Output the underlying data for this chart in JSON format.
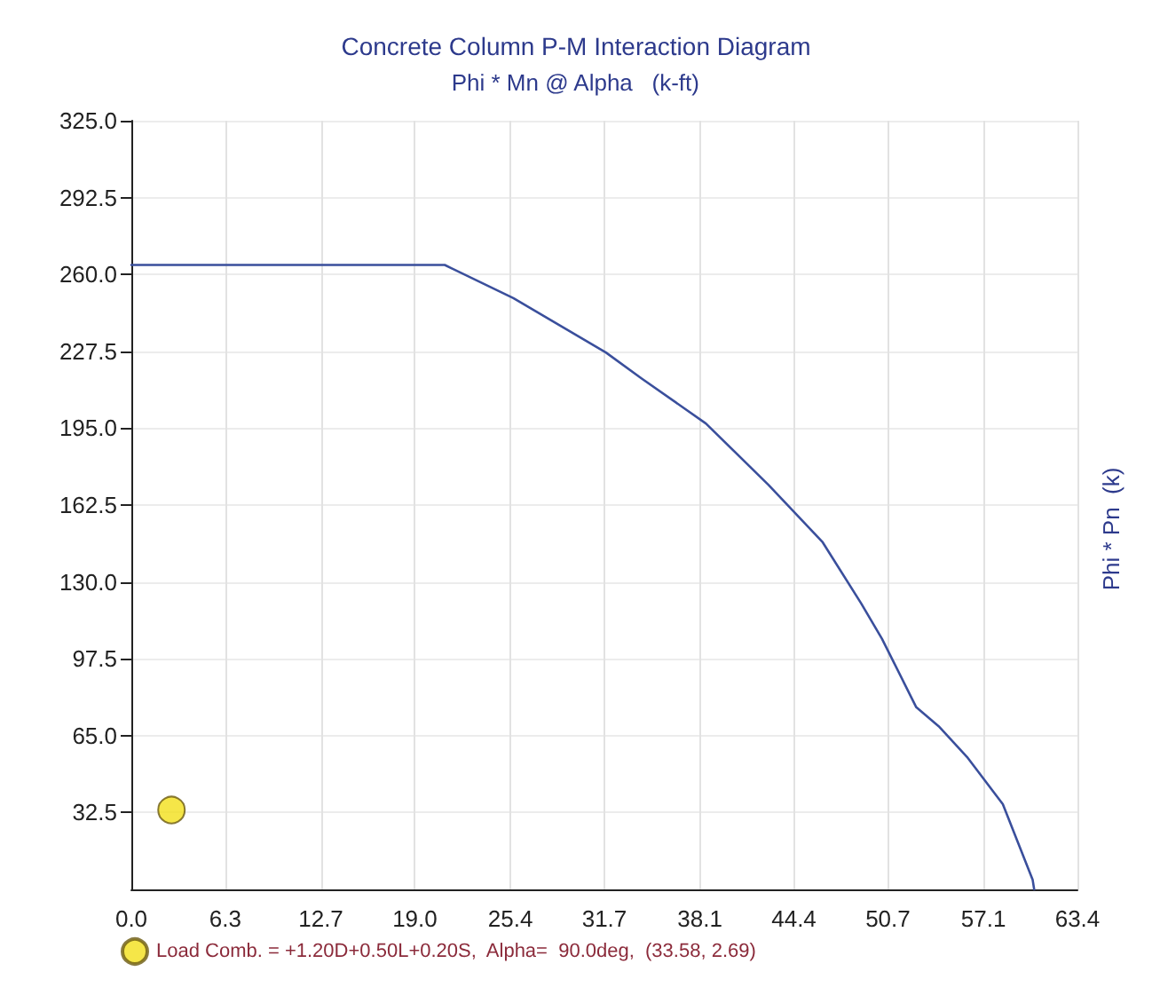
{
  "chart_data": {
    "type": "line",
    "title": "Concrete Column P-M Interaction Diagram",
    "xlabel": "Phi * Mn @ Alpha   (k-ft)",
    "ylabel": "Phi * Pn  (k)",
    "xlim": [
      0,
      63.4
    ],
    "xticks": [
      {
        "value": 0,
        "label": "0.0"
      },
      6.3,
      12.7,
      {
        "value": 19,
        "label": "19.0"
      },
      25.4,
      31.7,
      38.1,
      44.4,
      50.7,
      57.1,
      63.4
    ],
    "ylim": [
      0,
      325
    ],
    "yticks": [
      {
        "value": 32.5,
        "label": "32.5"
      },
      {
        "value": 65,
        "label": "65.0"
      },
      {
        "value": 97.5,
        "label": "97.5"
      },
      {
        "value": 130,
        "label": "130.0"
      },
      {
        "value": 162.5,
        "label": "162.5"
      },
      {
        "value": 195,
        "label": "195.0"
      },
      {
        "value": 227.5,
        "label": "227.5"
      },
      {
        "value": 260,
        "label": "260.0"
      },
      {
        "value": 292.5,
        "label": "292.5"
      },
      {
        "value": 325,
        "label": "325.0"
      }
    ],
    "grid": true,
    "legend": "bottom left",
    "series": [
      {
        "color": "#3a4f9c",
        "marker": "none",
        "line_style": "solid",
        "x": [
          0,
          21.0,
          25.6,
          31.8,
          34.2,
          38.5,
          42.7,
          46.3,
          48.9,
          50.3,
          52.6,
          54.1,
          56.0,
          58.4,
          60.4,
          60.5
        ],
        "values": [
          264,
          264,
          250,
          227,
          216,
          197,
          171,
          147,
          121,
          106,
          77,
          69,
          56,
          36,
          4,
          0
        ]
      },
      {
        "type": "scatter",
        "name": "Load Comb. = +1.20D+0.50L+0.20S,  Alpha=  90.0deg,  (33.58, 2.69)",
        "color": "#f2e01a",
        "marker": "circle",
        "x": [
          2.69
        ],
        "values": [
          33.58
        ]
      }
    ]
  }
}
